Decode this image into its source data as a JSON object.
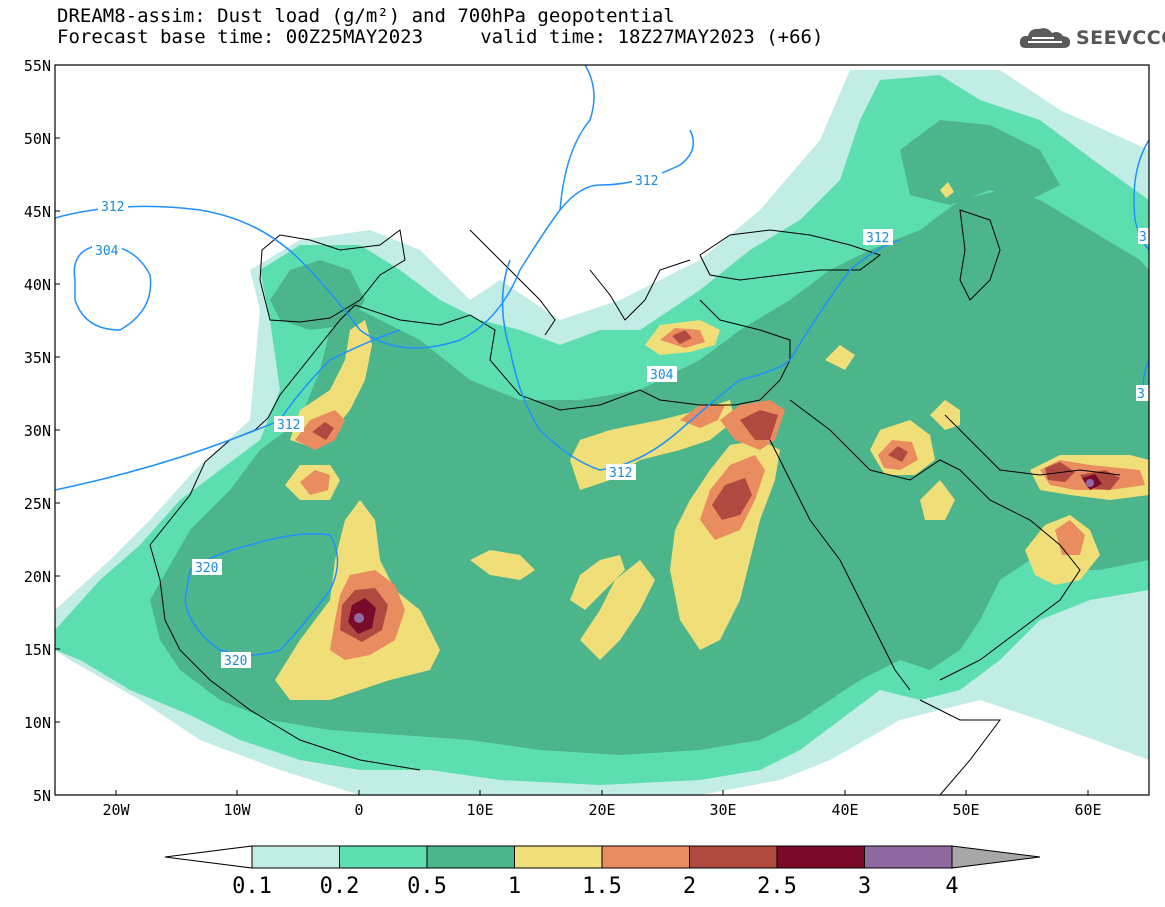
{
  "header": {
    "title_line1": "DREAM8-assim: Dust load (g/m²) and 700hPa geopotential",
    "title_line2": "Forecast base time: 00Z25MAY2023     valid time: 18Z27MAY2023 (+66)",
    "logo_text": "SEEVCCC",
    "logo_icon": "cloud-icon"
  },
  "map": {
    "lat_labels": [
      "55N",
      "50N",
      "45N",
      "40N",
      "35N",
      "30N",
      "25N",
      "20N",
      "15N",
      "10N",
      "5N"
    ],
    "lon_labels": [
      "20W",
      "10W",
      "0",
      "10E",
      "20E",
      "30E",
      "40E",
      "50E",
      "60E"
    ],
    "contour_labels": [
      "312",
      "304",
      "312",
      "312",
      "304",
      "312",
      "312",
      "320",
      "320",
      "3",
      "3"
    ],
    "contour_color": "#1e90ff",
    "dust_palette": {
      "0.1-0.2": "#c2ece6",
      "0.2-0.5": "#5ddeb1",
      "0.5-1": "#4db58c",
      "1-1.5": "#f0df78",
      "1.5-2": "#e98c60",
      "2-2.5": "#b04a40",
      "2.5-3": "#7a0a2a",
      "3-4": "#8e6aa0",
      "4+": "#a7a7a7"
    }
  },
  "colorbar": {
    "labels": [
      "0.1",
      "0.2",
      "0.5",
      "1",
      "1.5",
      "2",
      "2.5",
      "3",
      "4"
    ],
    "colors": [
      "#ffffff",
      "#c2ece6",
      "#5ddeb1",
      "#4db58c",
      "#f0df78",
      "#e98c60",
      "#b04a40",
      "#7a0a2a",
      "#8e6aa0",
      "#a7a7a7"
    ]
  }
}
